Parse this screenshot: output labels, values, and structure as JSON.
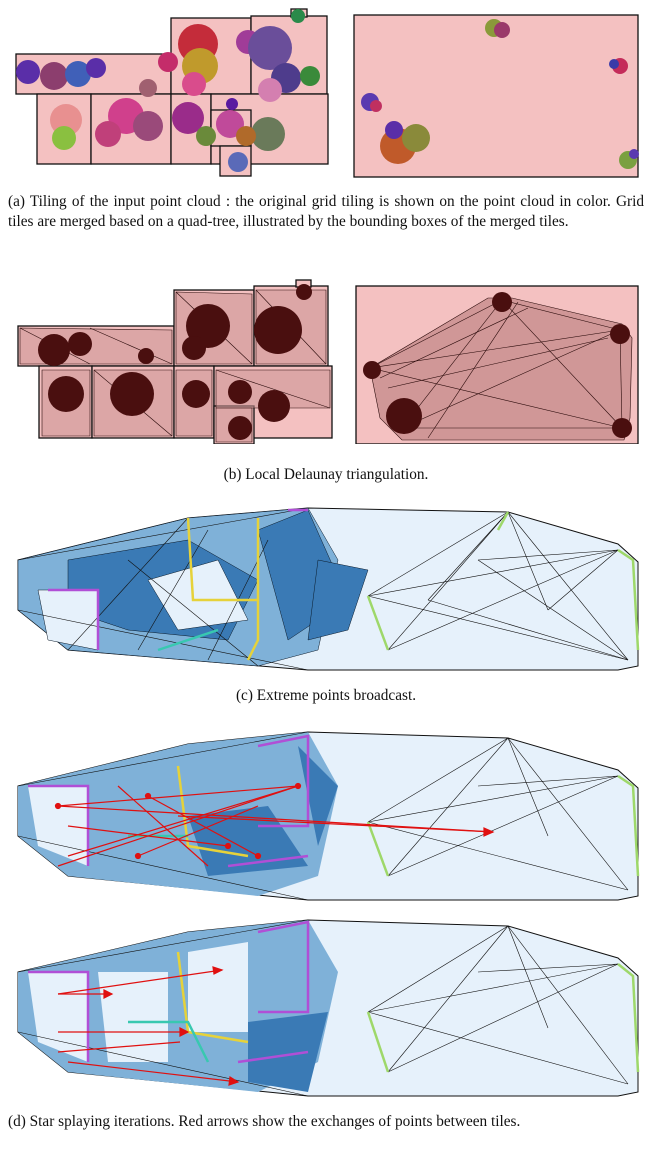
{
  "figure": {
    "captions": {
      "a": "(a) Tiling of the input point cloud : the original grid tiling is shown on the point cloud in color. Grid tiles are merged based on a quad-tree, illustrated by the bounding boxes of the merged tiles.",
      "b": "(b) Local Delaunay triangulation.",
      "c": "(c) Extreme points broadcast.",
      "d": "(d) Star splaying iterations. Red arrows show the exchanges of points between tiles."
    },
    "colors": {
      "tile_fill": "#f4c1c1",
      "tile_fill_dark": "#c98f8f",
      "cluster_dark": "#4a0f0f",
      "hull_dark_blue": "#3a7ab5",
      "hull_mid_blue": "#7fb1d8",
      "hull_light_blue": "#e6f1fb",
      "arrow_red": "#e01010",
      "tile_border_purple": "#b04fd6",
      "tile_border_yellow": "#e6d23a",
      "tile_border_green": "#9ed86a",
      "tile_border_cyan": "#38c8b0"
    }
  }
}
